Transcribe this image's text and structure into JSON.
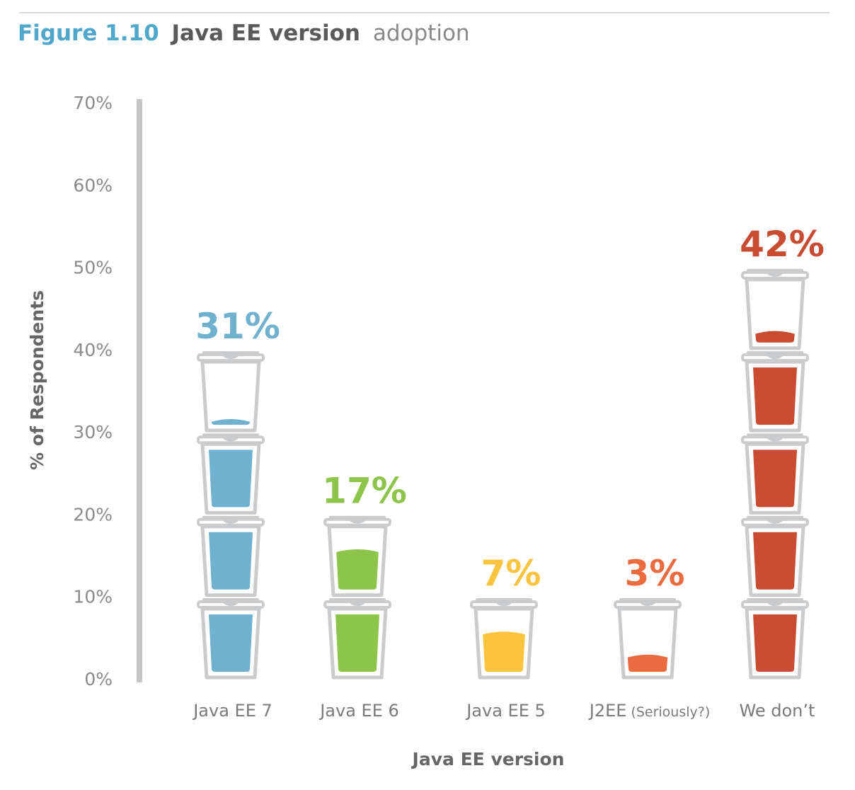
{
  "figure": {
    "label": "Figure 1.10",
    "title_bold": "Java EE version",
    "title_light": "adoption"
  },
  "colors": {
    "label": "#4FA8CC",
    "title": "#5A5A5A",
    "title_light": "#888888",
    "axis": "#C4C6C8",
    "tick_text": "#8A8A8A",
    "cup_outline": "#C9CBCD",
    "category_text": "#7A7A7A",
    "axis_title": "#666666"
  },
  "chart_data": {
    "type": "bar",
    "title": "Java EE version adoption",
    "xlabel": "Java EE version",
    "ylabel": "% of Respondents",
    "ylim": [
      0,
      70
    ],
    "yticks": [
      "0%",
      "10%",
      "20%",
      "30%",
      "40%",
      "50%",
      "60%",
      "70%"
    ],
    "categories": [
      {
        "name": "Java EE 7",
        "note": "",
        "value": 31,
        "label": "31%",
        "color": "#6FB1CF"
      },
      {
        "name": "Java EE 6",
        "note": "",
        "value": 17,
        "label": "17%",
        "color": "#8DC44A"
      },
      {
        "name": "Java EE 5",
        "note": "",
        "value": 7,
        "label": "7%",
        "color": "#FCC33F"
      },
      {
        "name": "J2EE",
        "note": "(Seriously?)",
        "value": 3,
        "label": "3%",
        "color": "#EB6A3E"
      },
      {
        "name": "We don’t",
        "note": "",
        "value": 42,
        "label": "42%",
        "color": "#C94B32"
      }
    ],
    "mark": "stacked coffee cups, each cup = 10%",
    "grid": false
  }
}
